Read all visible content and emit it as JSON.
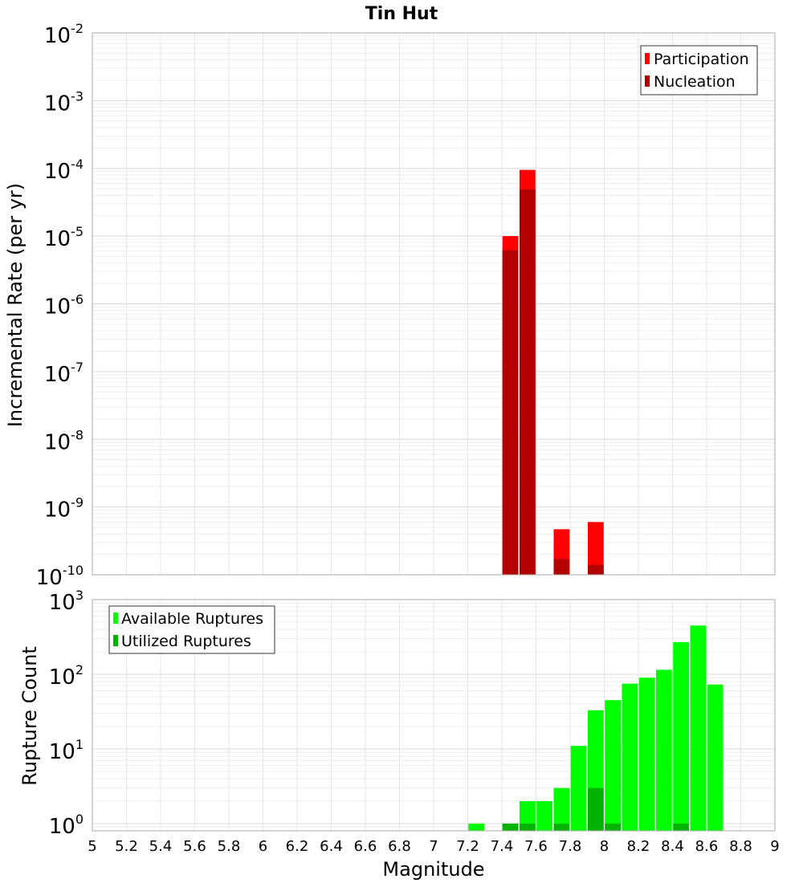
{
  "chart_data": [
    {
      "type": "bar",
      "title": "Tin Hut",
      "ylabel": "Incremental Rate (per yr)",
      "xlabel": "",
      "yscale": "log",
      "xlim": [
        5,
        9
      ],
      "ylim": [
        1e-10,
        0.01
      ],
      "grid": true,
      "legend_placement": "top-right",
      "ytick_labels": [
        {
          "base": "10",
          "exp": "-2"
        },
        {
          "base": "10",
          "exp": "-3"
        },
        {
          "base": "10",
          "exp": "-4"
        },
        {
          "base": "10",
          "exp": "-5"
        },
        {
          "base": "10",
          "exp": "-6"
        },
        {
          "base": "10",
          "exp": "-7"
        },
        {
          "base": "10",
          "exp": "-8"
        },
        {
          "base": "10",
          "exp": "-9"
        },
        {
          "base": "10",
          "exp": "-10"
        }
      ],
      "series": [
        {
          "name": "Participation",
          "color": "#ff0000",
          "points": [
            {
              "x": 7.45,
              "y": 1e-05
            },
            {
              "x": 7.55,
              "y": 9.5e-05
            },
            {
              "x": 7.75,
              "y": 4.7e-10
            },
            {
              "x": 7.95,
              "y": 6e-10
            }
          ]
        },
        {
          "name": "Nucleation",
          "color": "#b30000",
          "points": [
            {
              "x": 7.45,
              "y": 6.2e-06
            },
            {
              "x": 7.55,
              "y": 4.9e-05
            },
            {
              "x": 7.75,
              "y": 1.7e-10
            },
            {
              "x": 7.95,
              "y": 1.4e-10
            }
          ]
        }
      ]
    },
    {
      "type": "bar",
      "title": "",
      "ylabel": "Rupture Count",
      "xlabel": "Magnitude",
      "yscale": "log",
      "xlim": [
        5,
        9
      ],
      "ylim": [
        0.8,
        1000
      ],
      "grid": true,
      "legend_placement": "top-left",
      "ytick_labels": [
        {
          "base": "10",
          "exp": "3"
        },
        {
          "base": "10",
          "exp": "2"
        },
        {
          "base": "10",
          "exp": "1"
        },
        {
          "base": "10",
          "exp": "0"
        }
      ],
      "xtick_labels": [
        "5",
        "5.2",
        "5.4",
        "5.6",
        "5.8",
        "6",
        "6.2",
        "6.4",
        "6.6",
        "6.8",
        "7",
        "7.2",
        "7.4",
        "7.6",
        "7.8",
        "8",
        "8.2",
        "8.4",
        "8.6",
        "8.8",
        "9"
      ],
      "series": [
        {
          "name": "Available Ruptures",
          "color": "#00ff00",
          "points": [
            {
              "x": 7.25,
              "y": 1
            },
            {
              "x": 7.45,
              "y": 1
            },
            {
              "x": 7.55,
              "y": 2
            },
            {
              "x": 7.65,
              "y": 2
            },
            {
              "x": 7.75,
              "y": 3
            },
            {
              "x": 7.85,
              "y": 11
            },
            {
              "x": 7.95,
              "y": 33
            },
            {
              "x": 8.05,
              "y": 45
            },
            {
              "x": 8.15,
              "y": 75
            },
            {
              "x": 8.25,
              "y": 90
            },
            {
              "x": 8.35,
              "y": 115
            },
            {
              "x": 8.45,
              "y": 270
            },
            {
              "x": 8.55,
              "y": 450
            },
            {
              "x": 8.65,
              "y": 73
            }
          ]
        },
        {
          "name": "Utilized Ruptures",
          "color": "#00b300",
          "points": [
            {
              "x": 7.45,
              "y": 1
            },
            {
              "x": 7.55,
              "y": 1
            },
            {
              "x": 7.75,
              "y": 1
            },
            {
              "x": 7.95,
              "y": 3
            },
            {
              "x": 8.05,
              "y": 1
            },
            {
              "x": 8.45,
              "y": 1
            }
          ]
        }
      ]
    }
  ]
}
